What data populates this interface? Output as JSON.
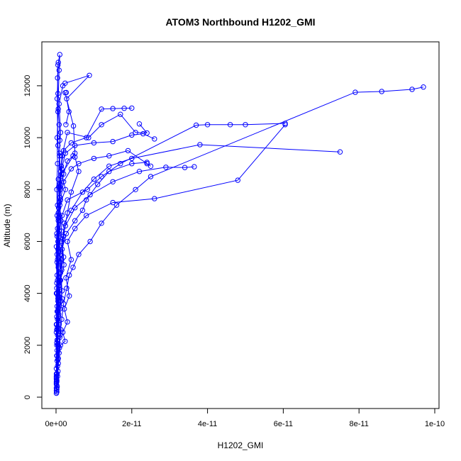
{
  "chart_data": {
    "type": "scatter",
    "title": "ATOM3 Northbound H1202_GMI",
    "xlabel": "H1202_GMI",
    "ylabel": "Altitude (m)",
    "xlim": [
      0,
      1e-10
    ],
    "ylim": [
      0,
      13200
    ],
    "x_ticks": [
      {
        "value": 0,
        "label": "0e+00"
      },
      {
        "value": 2e-11,
        "label": "2e-11"
      },
      {
        "value": 4e-11,
        "label": "4e-11"
      },
      {
        "value": 6e-11,
        "label": "6e-11"
      },
      {
        "value": 8e-11,
        "label": "8e-11"
      },
      {
        "value": 1e-10,
        "label": "1e-10"
      }
    ],
    "y_ticks": [
      {
        "value": 0,
        "label": "0"
      },
      {
        "value": 2000,
        "label": "2000"
      },
      {
        "value": 4000,
        "label": "4000"
      },
      {
        "value": 6000,
        "label": "6000"
      },
      {
        "value": 8000,
        "label": "8000"
      },
      {
        "value": 10000,
        "label": "10000"
      },
      {
        "value": 12000,
        "label": "12000"
      }
    ],
    "series_color": "#0000ff",
    "marker": "open-circle",
    "series": [
      {
        "values": [
          [
            1e-13,
            150
          ],
          [
            2e-13,
            600
          ],
          [
            1e-13,
            1100
          ],
          [
            3e-13,
            1600
          ],
          [
            2e-13,
            2100
          ],
          [
            4e-13,
            2700
          ],
          [
            3e-13,
            3300
          ],
          [
            5e-13,
            3900
          ],
          [
            4e-13,
            4500
          ],
          [
            6e-13,
            5100
          ],
          [
            5e-13,
            5700
          ],
          [
            8e-13,
            6300
          ],
          [
            6e-13,
            6900
          ],
          [
            9e-13,
            7500
          ],
          [
            7e-13,
            8100
          ],
          [
            1.2e-12,
            8700
          ],
          [
            9e-13,
            9300
          ],
          [
            1e-12,
            9900
          ],
          [
            8e-13,
            10500
          ],
          [
            6e-13,
            11100
          ],
          [
            5e-13,
            11700
          ],
          [
            4e-13,
            12300
          ],
          [
            5e-13,
            12800
          ]
        ]
      },
      {
        "values": [
          [
            2e-13,
            200
          ],
          [
            4e-13,
            800
          ],
          [
            3e-13,
            1400
          ],
          [
            5e-13,
            2000
          ],
          [
            4e-13,
            2600
          ],
          [
            7e-13,
            3200
          ],
          [
            5e-13,
            3800
          ],
          [
            9e-13,
            4400
          ],
          [
            6e-13,
            5000
          ],
          [
            1.1e-12,
            5600
          ],
          [
            8e-13,
            6200
          ],
          [
            1.3e-12,
            6800
          ],
          [
            1e-12,
            7400
          ],
          [
            2.5e-12,
            8000
          ],
          [
            1.5e-12,
            8600
          ],
          [
            5e-12,
            9400
          ],
          [
            4.6e-12,
            10450
          ],
          [
            2.4e-12,
            11730
          ],
          [
            2.7e-12,
            11740
          ]
        ]
      },
      {
        "values": [
          [
            1e-13,
            250
          ],
          [
            3e-13,
            900
          ],
          [
            6e-13,
            1500
          ],
          [
            4e-13,
            2200
          ],
          [
            8e-13,
            2800
          ],
          [
            6e-13,
            3400
          ],
          [
            1e-12,
            4000
          ],
          [
            7e-13,
            4600
          ],
          [
            1.2e-12,
            5200
          ],
          [
            9e-13,
            5800
          ],
          [
            1.4e-12,
            6400
          ],
          [
            1.6e-12,
            7000
          ],
          [
            3e-12,
            7600
          ],
          [
            8.3e-12,
            8000
          ],
          [
            1.2e-11,
            8500
          ],
          [
            1.7e-11,
            9000
          ],
          [
            3.7e-11,
            10480
          ],
          [
            4e-11,
            10500
          ],
          [
            4.6e-11,
            10500
          ],
          [
            5e-11,
            10500
          ],
          [
            6.05e-11,
            10550
          ]
        ]
      },
      {
        "values": [
          [
            2e-13,
            300
          ],
          [
            5e-13,
            1000
          ],
          [
            8e-13,
            1700
          ],
          [
            1.1e-12,
            2400
          ],
          [
            7e-13,
            3100
          ],
          [
            1.3e-12,
            3700
          ],
          [
            9e-13,
            4300
          ],
          [
            1.5e-12,
            4900
          ],
          [
            1.1e-12,
            5500
          ],
          [
            1.8e-12,
            6100
          ],
          [
            2.2e-12,
            6700
          ],
          [
            4e-12,
            7200
          ],
          [
            7e-12,
            7900
          ],
          [
            1e-11,
            8400
          ],
          [
            1.4e-11,
            8900
          ],
          [
            2e-11,
            9200
          ],
          [
            3.8e-11,
            9730
          ],
          [
            7.5e-11,
            9450
          ]
        ]
      },
      {
        "values": [
          [
            1e-13,
            350
          ],
          [
            4e-13,
            1200
          ],
          [
            9e-13,
            1900
          ],
          [
            1.3e-12,
            2600
          ],
          [
            1e-12,
            3400
          ],
          [
            1.6e-12,
            4100
          ],
          [
            1.2e-12,
            4800
          ],
          [
            2e-12,
            5400
          ],
          [
            1.5e-12,
            6000
          ],
          [
            2.5e-12,
            6600
          ],
          [
            5e-12,
            7300
          ],
          [
            9e-12,
            7800
          ],
          [
            1.5e-11,
            8300
          ],
          [
            2.2e-11,
            8700
          ],
          [
            2.9e-11,
            8860
          ],
          [
            3.4e-11,
            8850
          ],
          [
            3.65e-11,
            8880
          ]
        ]
      },
      {
        "values": [
          [
            3e-13,
            400
          ],
          [
            6e-13,
            1300
          ],
          [
            1.2e-12,
            2000
          ],
          [
            2.4e-12,
            2150
          ],
          [
            1.8e-12,
            2500
          ],
          [
            3e-12,
            2900
          ],
          [
            2.2e-12,
            3400
          ],
          [
            3.5e-12,
            3900
          ],
          [
            2.6e-12,
            4600
          ],
          [
            4e-12,
            5300
          ],
          [
            3e-12,
            6000
          ],
          [
            5e-12,
            6500
          ],
          [
            8e-12,
            7000
          ],
          [
            1.5e-11,
            7500
          ],
          [
            2.6e-11,
            7650
          ],
          [
            4.8e-11,
            8360
          ],
          [
            6.05e-11,
            10500
          ]
        ]
      },
      {
        "values": [
          [
            2e-13,
            450
          ],
          [
            5e-13,
            1450
          ],
          [
            1e-12,
            2300
          ],
          [
            1.5e-12,
            3000
          ],
          [
            2e-12,
            3600
          ],
          [
            2.8e-12,
            4200
          ],
          [
            3.5e-12,
            4700
          ],
          [
            4.5e-12,
            5000
          ],
          [
            6e-12,
            5500
          ],
          [
            9e-12,
            6000
          ],
          [
            1.2e-11,
            6700
          ],
          [
            1.6e-11,
            7400
          ],
          [
            2.1e-11,
            8000
          ],
          [
            2.5e-11,
            8500
          ],
          [
            7.9e-11,
            11750
          ],
          [
            8.6e-11,
            11780
          ],
          [
            9.4e-11,
            11860
          ],
          [
            9.7e-11,
            11950
          ]
        ]
      },
      {
        "values": [
          [
            1e-13,
            500
          ],
          [
            2e-13,
            1600
          ],
          [
            1e-13,
            2500
          ],
          [
            3e-13,
            3500
          ],
          [
            2e-13,
            4400
          ],
          [
            4e-13,
            5300
          ],
          [
            3e-13,
            6200
          ],
          [
            6e-13,
            7100
          ],
          [
            9e-13,
            8200
          ],
          [
            1.6e-12,
            9300
          ],
          [
            3e-12,
            10200
          ],
          [
            8.6e-12,
            10000
          ],
          [
            1.2e-11,
            10500
          ],
          [
            1.7e-11,
            10900
          ],
          [
            2.1e-11,
            10200
          ],
          [
            2.4e-11,
            10180
          ],
          [
            2.2e-11,
            10530
          ]
        ]
      },
      {
        "values": [
          [
            1e-13,
            550
          ],
          [
            3e-13,
            1800
          ],
          [
            2e-13,
            2800
          ],
          [
            5e-13,
            3700
          ],
          [
            3e-13,
            4700
          ],
          [
            6e-13,
            5600
          ],
          [
            4e-13,
            6500
          ],
          [
            7e-13,
            7300
          ],
          [
            1e-12,
            8100
          ],
          [
            1.4e-12,
            8900
          ],
          [
            2e-12,
            9500
          ],
          [
            4e-12,
            9800
          ],
          [
            8e-12,
            10000
          ],
          [
            1.2e-11,
            11100
          ],
          [
            1.5e-11,
            11120
          ],
          [
            1.8e-11,
            11130
          ],
          [
            2e-11,
            11140
          ]
        ]
      },
      {
        "values": [
          [
            1e-13,
            600
          ],
          [
            2e-13,
            2000
          ],
          [
            4e-13,
            3000
          ],
          [
            3e-13,
            4000
          ],
          [
            6e-13,
            5000
          ],
          [
            5e-13,
            6000
          ],
          [
            8e-13,
            7000
          ],
          [
            1.1e-12,
            8000
          ],
          [
            1.5e-12,
            8800
          ],
          [
            2.5e-12,
            9400
          ],
          [
            5e-12,
            9700
          ],
          [
            1e-11,
            9800
          ],
          [
            1.5e-11,
            9850
          ],
          [
            2e-11,
            10100
          ],
          [
            2.3e-11,
            10150
          ],
          [
            2.6e-11,
            9950
          ]
        ]
      },
      {
        "values": [
          [
            2e-13,
            650
          ],
          [
            3e-13,
            2200
          ],
          [
            5e-13,
            3300
          ],
          [
            7e-13,
            4300
          ],
          [
            6e-13,
            5400
          ],
          [
            9e-13,
            6400
          ],
          [
            1.2e-12,
            7600
          ],
          [
            2e-12,
            8300
          ],
          [
            4e-12,
            8800
          ],
          [
            6e-12,
            9000
          ],
          [
            1e-11,
            9200
          ],
          [
            1.4e-11,
            9300
          ],
          [
            1.9e-11,
            9500
          ],
          [
            2.4e-11,
            9000
          ],
          [
            2.5e-11,
            8900
          ]
        ]
      },
      {
        "values": [
          [
            1e-13,
            700
          ],
          [
            4e-13,
            2400
          ],
          [
            8e-13,
            3500
          ],
          [
            1.6e-12,
            3800
          ],
          [
            1.2e-12,
            4500
          ],
          [
            2.1e-12,
            5100
          ],
          [
            1.6e-12,
            5700
          ],
          [
            2.7e-12,
            6300
          ],
          [
            5e-12,
            6800
          ],
          [
            7e-12,
            7200
          ],
          [
            8e-12,
            7600
          ],
          [
            1.1e-11,
            8200
          ],
          [
            1.4e-11,
            8700
          ],
          [
            2e-11,
            9000
          ],
          [
            2.4e-11,
            9050
          ]
        ]
      },
      {
        "values": [
          [
            1e-13,
            750
          ],
          [
            2e-13,
            2600
          ],
          [
            1e-13,
            4000
          ],
          [
            3e-13,
            5200
          ],
          [
            2e-13,
            6300
          ],
          [
            4e-13,
            7400
          ],
          [
            6e-13,
            8400
          ],
          [
            9e-13,
            9400
          ],
          [
            1.2e-12,
            10200
          ],
          [
            8e-13,
            11300
          ],
          [
            1.8e-12,
            12000
          ],
          [
            2.4e-12,
            12100
          ],
          [
            8.8e-12,
            12400
          ],
          [
            2.8e-12,
            11500
          ],
          [
            3.4e-12,
            11000
          ],
          [
            2.6e-12,
            10500
          ]
        ]
      },
      {
        "values": [
          [
            1e-13,
            800
          ],
          [
            1e-13,
            2800
          ],
          [
            2e-13,
            4200
          ],
          [
            1e-13,
            5800
          ],
          [
            3e-13,
            7000
          ],
          [
            2e-13,
            8000
          ],
          [
            4e-13,
            9000
          ],
          [
            3e-13,
            10000
          ],
          [
            5e-13,
            11000
          ],
          [
            8e-13,
            12600
          ],
          [
            1e-12,
            13200
          ],
          [
            6e-13,
            12900
          ],
          [
            3e-13,
            11500
          ],
          [
            5e-13,
            9700
          ],
          [
            1.3e-12,
            8500
          ]
        ]
      },
      {
        "values": [
          [
            1e-13,
            900
          ],
          [
            2e-13,
            3100
          ],
          [
            3e-13,
            5500
          ],
          [
            6e-13,
            6800
          ],
          [
            1e-12,
            7700
          ],
          [
            2e-12,
            8600
          ],
          [
            3e-12,
            9100
          ],
          [
            4.5e-12,
            9300
          ],
          [
            5e-12,
            9250
          ],
          [
            6e-12,
            8700
          ],
          [
            4e-12,
            7900
          ],
          [
            3e-12,
            7100
          ],
          [
            2e-12,
            6200
          ],
          [
            1.5e-12,
            5300
          ],
          [
            1e-12,
            4500
          ],
          [
            7e-13,
            3600
          ]
        ]
      }
    ]
  }
}
